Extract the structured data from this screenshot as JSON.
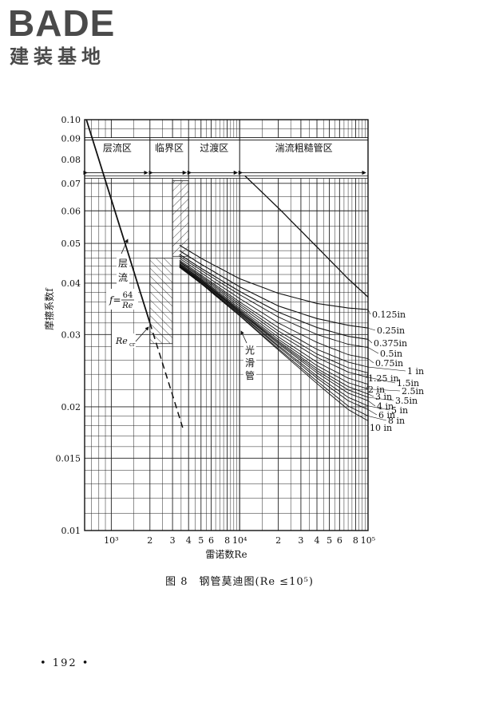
{
  "logo": {
    "brand": "BADE",
    "subtitle": "建装基地"
  },
  "caption": "图 8　钢管莫迪图(Re ≤10⁵)",
  "page_number": "• 192 •",
  "chart_data": {
    "type": "line",
    "xlabel": "雷诺数Re",
    "ylabel": "摩擦系数f",
    "x_scale": "log",
    "y_scale": "log",
    "xlim": [
      620,
      100000
    ],
    "ylim": [
      0.01,
      0.1
    ],
    "grid": true,
    "x_ticks": [
      {
        "value": 1000,
        "label": "10³"
      },
      {
        "value": 2000,
        "label": "2"
      },
      {
        "value": 3000,
        "label": "3"
      },
      {
        "value": 4000,
        "label": "4"
      },
      {
        "value": 5000,
        "label": "5"
      },
      {
        "value": 6000,
        "label": "6"
      },
      {
        "value": 8000,
        "label": "8"
      },
      {
        "value": 10000,
        "label": "10⁴"
      },
      {
        "value": 20000,
        "label": "2"
      },
      {
        "value": 30000,
        "label": "3"
      },
      {
        "value": 40000,
        "label": "4"
      },
      {
        "value": 50000,
        "label": "5"
      },
      {
        "value": 60000,
        "label": "6"
      },
      {
        "value": 80000,
        "label": "8"
      },
      {
        "value": 100000,
        "label": "10⁵"
      }
    ],
    "y_ticks": [
      {
        "value": 0.1,
        "label": "0.10"
      },
      {
        "value": 0.09,
        "label": "0.09"
      },
      {
        "value": 0.08,
        "label": "0.08"
      },
      {
        "value": 0.07,
        "label": "0.07"
      },
      {
        "value": 0.06,
        "label": "0.06"
      },
      {
        "value": 0.05,
        "label": "0.05"
      },
      {
        "value": 0.04,
        "label": "0.04"
      },
      {
        "value": 0.03,
        "label": "0.03"
      },
      {
        "value": 0.02,
        "label": "0.02"
      },
      {
        "value": 0.015,
        "label": "0.015"
      },
      {
        "value": 0.01,
        "label": "0.01"
      }
    ],
    "regions": [
      {
        "label": "层流区",
        "from": 620,
        "to": 2000
      },
      {
        "label": "临界区",
        "from": 2000,
        "to": 4000
      },
      {
        "label": "过渡区",
        "from": 4000,
        "to": 10000
      },
      {
        "label": "湍流粗糙管区",
        "from": 10000,
        "to": 100000
      }
    ],
    "laminar_formula": {
      "lhs": "f=",
      "numerator": "64",
      "denominator": "Re"
    },
    "annotations": {
      "laminar": "层流",
      "critical": "Re",
      "critical_sub": "cr",
      "smooth": "光滑管"
    },
    "series": [
      {
        "name": "0.125in",
        "x": [
          3400,
          5000,
          10000,
          20000,
          40000,
          70000,
          100000
        ],
        "y": [
          0.0495,
          0.046,
          0.041,
          0.0378,
          0.0357,
          0.0348,
          0.0345
        ]
      },
      {
        "name": "0.25in",
        "x": [
          3400,
          5000,
          10000,
          20000,
          40000,
          70000,
          100000
        ],
        "y": [
          0.048,
          0.0445,
          0.0392,
          0.0352,
          0.0328,
          0.0316,
          0.0311
        ]
      },
      {
        "name": "0.375in",
        "x": [
          3400,
          5000,
          10000,
          20000,
          40000,
          70000,
          100000
        ],
        "y": [
          0.047,
          0.0435,
          0.0382,
          0.034,
          0.0312,
          0.0297,
          0.0292
        ]
      },
      {
        "name": "0.5in",
        "x": [
          3400,
          5000,
          10000,
          20000,
          40000,
          70000,
          100000
        ],
        "y": [
          0.0465,
          0.043,
          0.0375,
          0.0331,
          0.03,
          0.0284,
          0.0279
        ]
      },
      {
        "name": "0.75in",
        "x": [
          3400,
          5000,
          10000,
          20000,
          40000,
          70000,
          100000
        ],
        "y": [
          0.046,
          0.0424,
          0.0367,
          0.032,
          0.0287,
          0.0268,
          0.0262
        ]
      },
      {
        "name": "1 in",
        "x": [
          3400,
          5000,
          10000,
          20000,
          40000,
          70000,
          100000
        ],
        "y": [
          0.0455,
          0.0419,
          0.036,
          0.0312,
          0.0276,
          0.0257,
          0.025
        ]
      },
      {
        "name": "1.25 in",
        "x": [
          3400,
          5000,
          10000,
          20000,
          40000,
          70000,
          100000
        ],
        "y": [
          0.0452,
          0.0416,
          0.0356,
          0.0306,
          0.0269,
          0.0249,
          0.0242
        ]
      },
      {
        "name": "1.5in",
        "x": [
          3400,
          5000,
          10000,
          20000,
          40000,
          70000,
          100000
        ],
        "y": [
          0.045,
          0.0413,
          0.0352,
          0.0301,
          0.0264,
          0.0243,
          0.0236
        ]
      },
      {
        "name": "2 in",
        "x": [
          3400,
          5000,
          10000,
          20000,
          40000,
          70000,
          100000
        ],
        "y": [
          0.0447,
          0.041,
          0.0348,
          0.0296,
          0.0257,
          0.0235,
          0.0227
        ]
      },
      {
        "name": "2.5in",
        "x": [
          3400,
          5000,
          10000,
          20000,
          40000,
          70000,
          100000
        ],
        "y": [
          0.0445,
          0.0408,
          0.0345,
          0.0292,
          0.0252,
          0.0229,
          0.0221
        ]
      },
      {
        "name": "3 in",
        "x": [
          3400,
          5000,
          10000,
          20000,
          40000,
          70000,
          100000
        ],
        "y": [
          0.0443,
          0.0406,
          0.0343,
          0.0289,
          0.0248,
          0.0224,
          0.0215
        ]
      },
      {
        "name": "3.5in",
        "x": [
          3400,
          5000,
          10000,
          20000,
          40000,
          70000,
          100000
        ],
        "y": [
          0.0442,
          0.0405,
          0.0341,
          0.0287,
          0.0245,
          0.022,
          0.0211
        ]
      },
      {
        "name": "4 in",
        "x": [
          3400,
          5000,
          10000,
          20000,
          40000,
          70000,
          100000
        ],
        "y": [
          0.0441,
          0.0404,
          0.034,
          0.0285,
          0.0242,
          0.0216,
          0.0207
        ]
      },
      {
        "name": "5 in",
        "x": [
          3400,
          5000,
          10000,
          20000,
          40000,
          70000,
          100000
        ],
        "y": [
          0.044,
          0.0402,
          0.0338,
          0.0282,
          0.0238,
          0.0211,
          0.0201
        ]
      },
      {
        "name": "6 in",
        "x": [
          3400,
          5000,
          10000,
          20000,
          40000,
          70000,
          100000
        ],
        "y": [
          0.0439,
          0.0401,
          0.0336,
          0.028,
          0.0235,
          0.0207,
          0.0197
        ]
      },
      {
        "name": "8 in",
        "x": [
          3400,
          5000,
          10000,
          20000,
          40000,
          70000,
          100000
        ],
        "y": [
          0.0438,
          0.04,
          0.0334,
          0.0277,
          0.0231,
          0.0201,
          0.019
        ]
      },
      {
        "name": "10 in",
        "x": [
          3400,
          5000,
          10000,
          20000,
          40000,
          70000,
          100000
        ],
        "y": [
          0.0437,
          0.0399,
          0.0333,
          0.0275,
          0.0228,
          0.0197,
          0.0185
        ]
      }
    ],
    "laminar_line": {
      "x": [
        640,
        2000
      ],
      "y": [
        0.1,
        0.032
      ]
    },
    "laminar_extension": {
      "x": [
        2000,
        3600
      ],
      "y": [
        0.032,
        0.0178
      ]
    },
    "rough_boundary": {
      "x": [
        11000,
        20000,
        40000,
        70000,
        100000
      ],
      "y": [
        0.073,
        0.061,
        0.049,
        0.041,
        0.037
      ]
    },
    "critical_zone": {
      "x": [
        3000,
        4000
      ],
      "y": [
        0.071,
        0.0465
      ]
    },
    "transition_zone": {
      "x": [
        2000,
        3000
      ],
      "y": [
        0.046,
        0.0285
      ]
    }
  }
}
